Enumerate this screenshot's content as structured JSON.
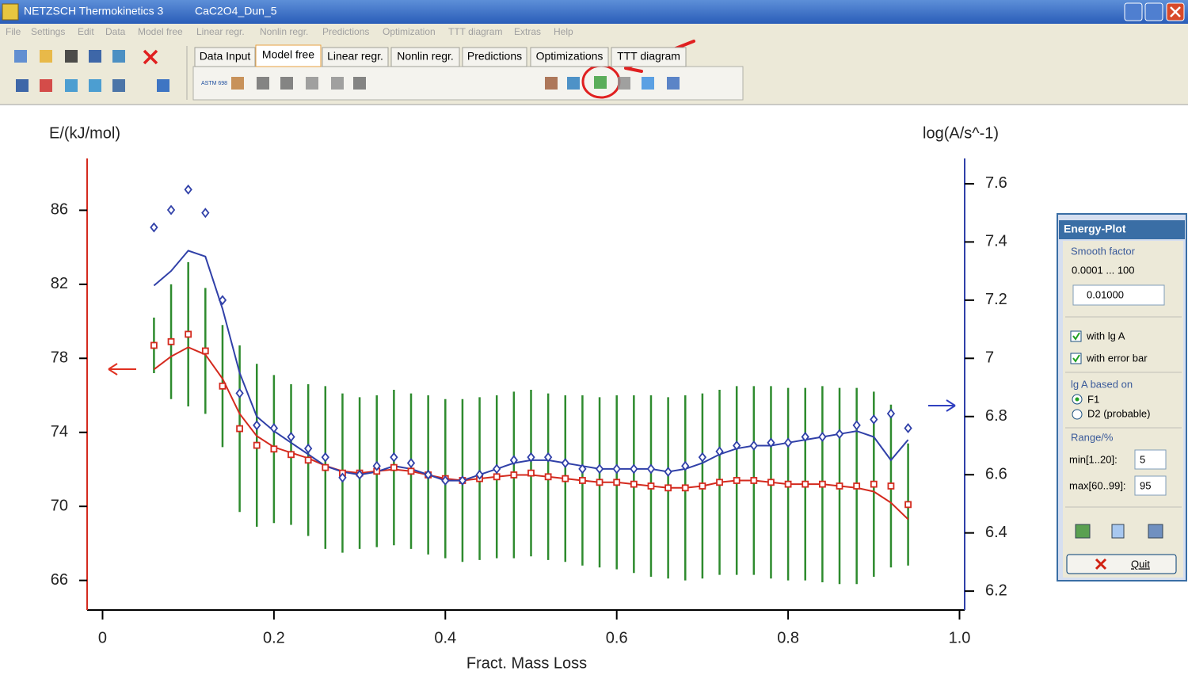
{
  "window": {
    "app_title": "NETZSCH Thermokinetics 3",
    "file": "CaC2O4_Dun_5"
  },
  "menu": [
    "File",
    "Settings",
    "Edit",
    "Data",
    "Model free",
    "Linear regr.",
    "Nonlin regr.",
    "Predictions",
    "Optimization",
    "TTT diagram",
    "Extras",
    "Help"
  ],
  "tabs": [
    "Data Input",
    "Model free",
    "Linear regr.",
    "Nonlin regr.",
    "Predictions",
    "Optimizations",
    "TTT diagram"
  ],
  "toolbar_label": "ASTM 698",
  "energy_plot": {
    "title": "Energy-Plot",
    "smooth_factor": "Smooth factor",
    "smooth_range": "0.0001 ... 100",
    "smooth_value": "0.01000",
    "with_lg_a": "with lg A",
    "with_error_bar": "with error bar",
    "lg_a_based_on": "lg A based on",
    "f1": "F1",
    "d2": "D2 (probable)",
    "range": "Range/%",
    "min_label": "min[1..20]:",
    "min_value": "5",
    "max_label": "max[60..99]:",
    "max_value": "95",
    "quit": "Quit"
  },
  "chart_data": {
    "type": "scatter",
    "xlabel": "Fract. Mass Loss",
    "ylabel": "E/(kJ/mol)",
    "y2label": "log(A/s^-1)",
    "xlim": [
      -0.018,
      1.006
    ],
    "xticks": [
      0,
      0.2,
      0.4,
      0.6,
      0.8,
      {
        "value": 1,
        "label": "1.0"
      }
    ],
    "ylim": [
      64.4,
      88.8
    ],
    "yticks": [
      66,
      70,
      74,
      78,
      82,
      86
    ],
    "y2lim": [
      6.135,
      7.687
    ],
    "y2ticks": [
      6.2,
      6.4,
      6.6,
      6.8,
      7.0,
      7.2,
      7.4,
      7.6
    ],
    "yaxis_color": "#d42a1e",
    "y2axis_color": "#3040a8",
    "x": [
      0.06,
      0.08,
      0.1,
      0.12,
      0.14,
      0.16,
      0.18,
      0.2,
      0.22,
      0.24,
      0.26,
      0.28,
      0.3,
      0.32,
      0.34,
      0.36,
      0.38,
      0.4,
      0.42,
      0.44,
      0.46,
      0.48,
      0.5,
      0.52,
      0.54,
      0.56,
      0.58,
      0.6,
      0.62,
      0.64,
      0.66,
      0.68,
      0.7,
      0.72,
      0.74,
      0.76,
      0.78,
      0.8,
      0.82,
      0.84,
      0.86,
      0.88,
      0.9,
      0.92,
      0.94
    ],
    "series": [
      {
        "color": "#d42a1e",
        "marker": "square",
        "error_color": "#2e8b2e",
        "values": [
          78.7,
          78.9,
          79.3,
          78.4,
          76.5,
          74.2,
          73.3,
          73.1,
          72.8,
          72.5,
          72.1,
          71.8,
          71.8,
          71.9,
          72.1,
          71.9,
          71.7,
          71.5,
          71.4,
          71.5,
          71.6,
          71.7,
          71.8,
          71.6,
          71.5,
          71.4,
          71.3,
          71.3,
          71.2,
          71.1,
          71.0,
          71.0,
          71.1,
          71.3,
          71.4,
          71.4,
          71.3,
          71.2,
          71.2,
          71.2,
          71.1,
          71.1,
          71.2,
          71.1,
          70.1
        ],
        "errors": [
          1.5,
          3.1,
          3.9,
          3.4,
          3.3,
          4.5,
          4.4,
          4.0,
          3.8,
          4.1,
          4.4,
          4.3,
          4.1,
          4.1,
          4.2,
          4.2,
          4.3,
          4.3,
          4.4,
          4.4,
          4.4,
          4.5,
          4.5,
          4.5,
          4.5,
          4.6,
          4.6,
          4.7,
          4.8,
          4.9,
          4.9,
          5.0,
          5.0,
          5.0,
          5.1,
          5.1,
          5.2,
          5.2,
          5.2,
          5.3,
          5.3,
          5.3,
          5.0,
          4.4,
          3.3
        ]
      },
      {
        "color": "#d42a1e",
        "values": [
          77.4,
          78.1,
          78.6,
          78.2,
          76.9,
          75.0,
          73.8,
          73.2,
          72.9,
          72.6,
          72.2,
          71.9,
          71.8,
          71.9,
          72.0,
          71.9,
          71.7,
          71.5,
          71.4,
          71.5,
          71.6,
          71.7,
          71.7,
          71.6,
          71.5,
          71.4,
          71.3,
          71.3,
          71.2,
          71.1,
          71.0,
          71.0,
          71.1,
          71.3,
          71.4,
          71.4,
          71.3,
          71.2,
          71.2,
          71.2,
          71.1,
          71.0,
          70.8,
          70.2,
          69.3
        ]
      },
      {
        "color": "#3040a8",
        "marker": "diamond",
        "axis": "y2",
        "values": [
          7.45,
          7.51,
          7.58,
          7.5,
          7.2,
          6.88,
          6.77,
          6.76,
          6.73,
          6.69,
          6.66,
          6.59,
          6.6,
          6.63,
          6.66,
          6.64,
          6.6,
          6.58,
          6.58,
          6.6,
          6.62,
          6.65,
          6.66,
          6.66,
          6.64,
          6.62,
          6.62,
          6.62,
          6.62,
          6.62,
          6.61,
          6.63,
          6.66,
          6.68,
          6.7,
          6.7,
          6.71,
          6.71,
          6.73,
          6.73,
          6.74,
          6.77,
          6.79,
          6.81,
          6.76
        ]
      },
      {
        "color": "#3040a8",
        "axis": "y2",
        "values": [
          7.25,
          7.3,
          7.37,
          7.35,
          7.17,
          6.95,
          6.8,
          6.75,
          6.71,
          6.67,
          6.63,
          6.61,
          6.6,
          6.61,
          6.63,
          6.62,
          6.6,
          6.58,
          6.58,
          6.6,
          6.62,
          6.64,
          6.65,
          6.65,
          6.64,
          6.63,
          6.62,
          6.62,
          6.62,
          6.62,
          6.61,
          6.62,
          6.64,
          6.67,
          6.69,
          6.7,
          6.7,
          6.71,
          6.72,
          6.73,
          6.74,
          6.75,
          6.73,
          6.65,
          6.72
        ]
      }
    ]
  }
}
